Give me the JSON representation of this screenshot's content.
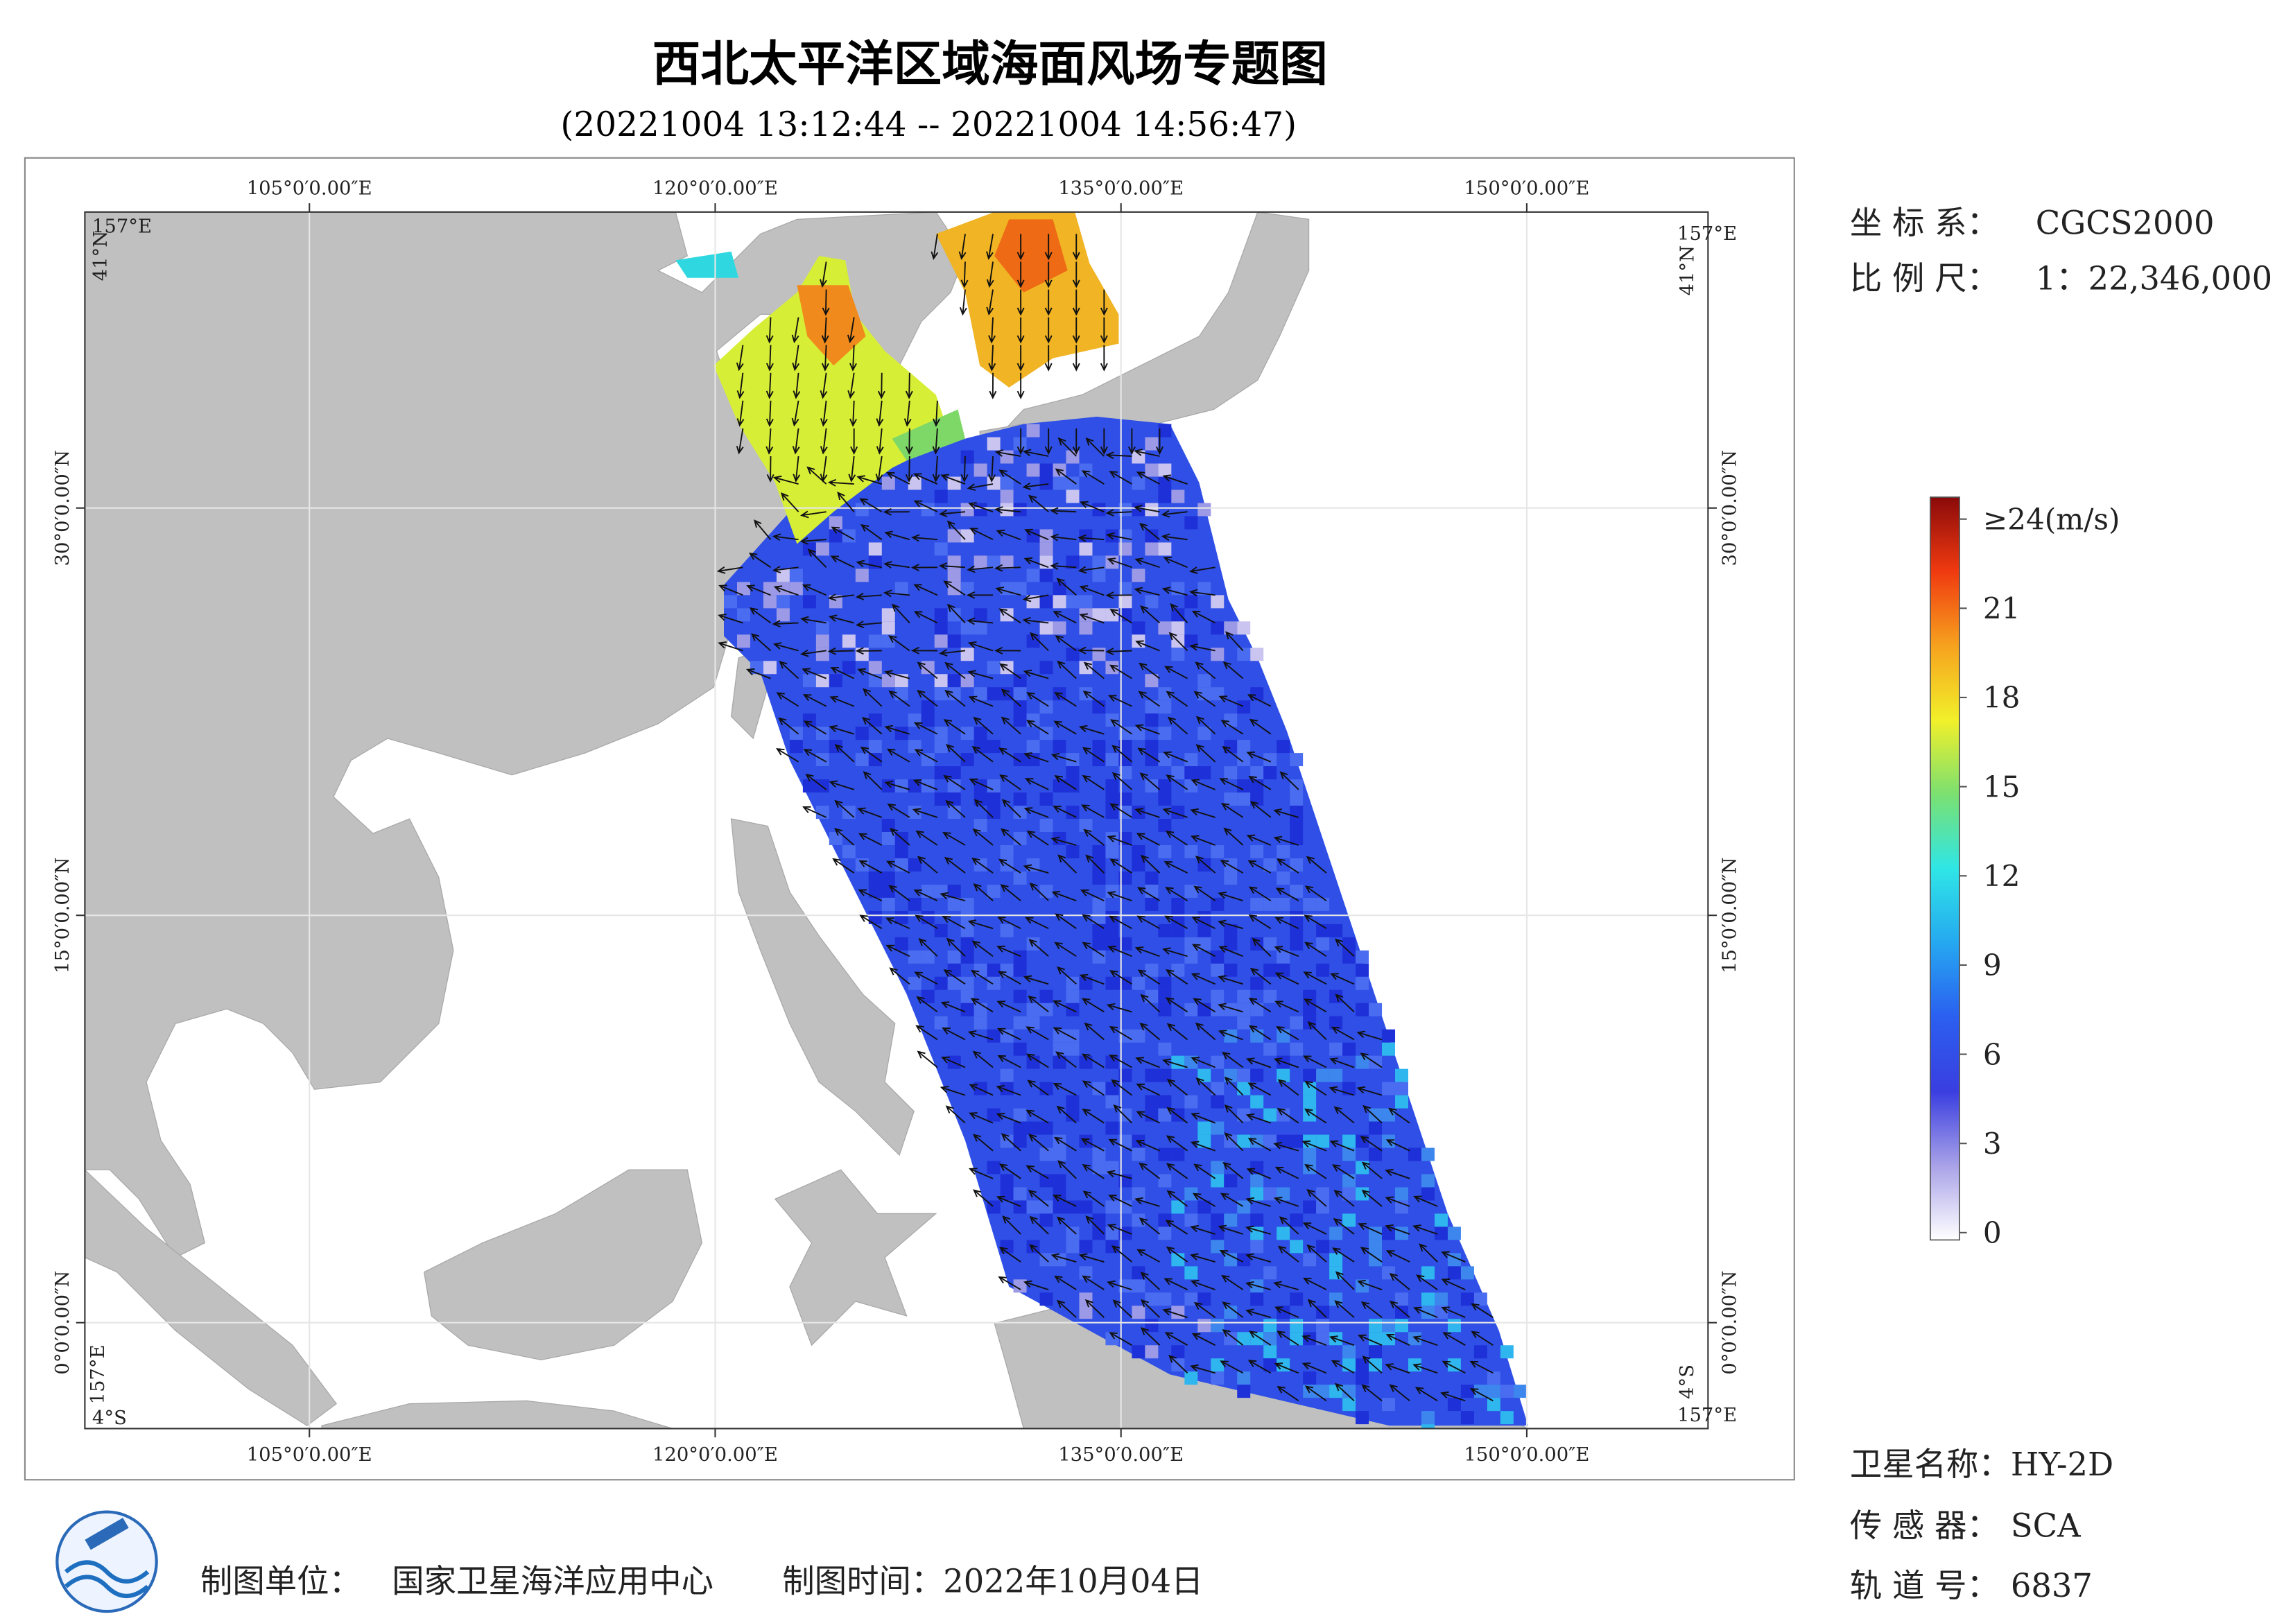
{
  "header": {
    "title": "西北太平洋区域海面风场专题图",
    "subtitle": "(20221004 13:12:44 -- 20221004 14:56:47)"
  },
  "map": {
    "xlim": [
      96.7,
      156.7
    ],
    "ylim": [
      -3.9,
      40.9
    ],
    "xticks": [
      {
        "value": 105,
        "label": "105°0′0.00″E"
      },
      {
        "value": 120,
        "label": "120°0′0.00″E"
      },
      {
        "value": 135,
        "label": "135°0′0.00″E"
      },
      {
        "value": 150,
        "label": "150°0′0.00″E"
      }
    ],
    "yticks": [
      {
        "value": 0,
        "label": "0°0′0.00″N"
      },
      {
        "value": 15,
        "label": "15°0′0.00″N"
      },
      {
        "value": 30,
        "label": "30°0′0.00″N"
      }
    ],
    "corner_labels": [
      "157°E",
      "41°N",
      "157°E",
      "41°N",
      "157°E",
      "4°S",
      "4°S",
      "157°E"
    ]
  },
  "colorbar": {
    "range": [
      0,
      24
    ],
    "colors": [
      "#ffffff",
      "#a9a2e8",
      "#3a3ee0",
      "#2b5ff0",
      "#25a8f0",
      "#2fe6e6",
      "#7be070",
      "#f2f02a",
      "#f6a21e",
      "#f03a10",
      "#8a0a0a"
    ],
    "ticks": [
      0,
      3,
      6,
      9,
      12,
      15,
      18,
      21,
      {
        "value": 24,
        "label": "≥24(m/s)"
      }
    ]
  },
  "info": {
    "coordinate_system": {
      "label": "坐 标 系：",
      "value": "CGCS2000"
    },
    "scale": {
      "label": "比 例 尺：",
      "value": "1：22,346,000"
    },
    "satellite": {
      "label": "卫星名称：",
      "value": "HY-2D"
    },
    "sensor": {
      "label": "传 感 器：",
      "value": "SCA"
    },
    "orbit": {
      "label": "轨 道 号：",
      "value": "6837"
    }
  },
  "footer": {
    "producer_label": "制图单位：",
    "producer": "国家卫星海洋应用中心",
    "date": "制图时间：2022年10月04日"
  }
}
